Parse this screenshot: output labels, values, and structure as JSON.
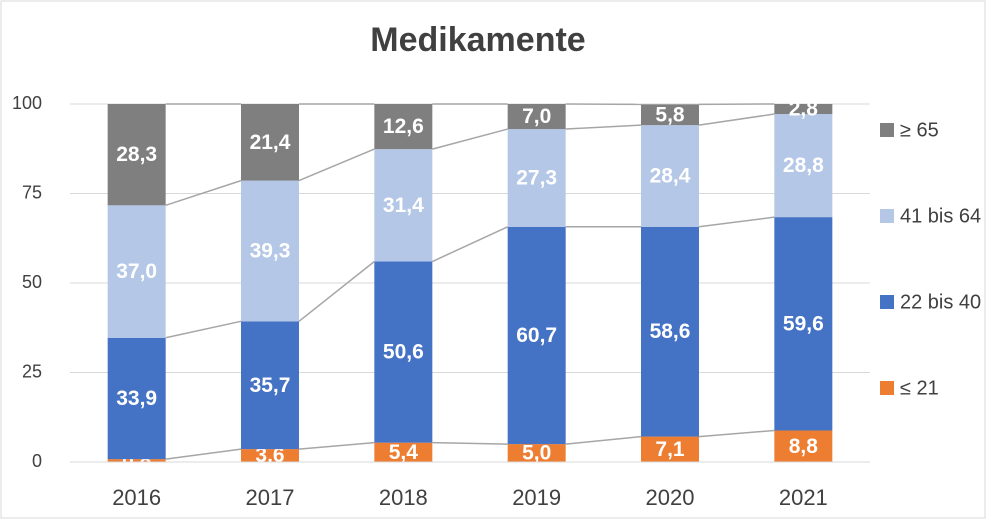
{
  "chart_data": {
    "type": "stacked_bar",
    "title": "Medikamente",
    "categories": [
      "2016",
      "2017",
      "2018",
      "2019",
      "2020",
      "2021"
    ],
    "series": [
      {
        "name": "≤ 21",
        "color": "#ed7d31",
        "values": [
          0.8,
          3.6,
          5.4,
          5.0,
          7.1,
          8.8
        ],
        "value_labels": [
          "0,8",
          "3,6",
          "5,4",
          "5,0",
          "7,1",
          "8,8"
        ]
      },
      {
        "name": "22 bis 40",
        "color": "#4472c4",
        "values": [
          33.9,
          35.7,
          50.6,
          60.7,
          58.6,
          59.6
        ],
        "value_labels": [
          "33,9",
          "35,7",
          "50,6",
          "60,7",
          "58,6",
          "59,6"
        ]
      },
      {
        "name": "41 bis 64",
        "color": "#b4c7e7",
        "values": [
          37.0,
          39.3,
          31.4,
          27.3,
          28.4,
          28.8
        ],
        "value_labels": [
          "37,0",
          "39,3",
          "31,4",
          "27,3",
          "28,4",
          "28,8"
        ]
      },
      {
        "name": "≥ 65",
        "color": "#7f7f7f",
        "values": [
          28.3,
          21.4,
          12.6,
          7.0,
          5.8,
          2.8
        ],
        "value_labels": [
          "28,3",
          "21,4",
          "12,6",
          "7,0",
          "5,8",
          "2,8"
        ]
      }
    ],
    "ylim": [
      0,
      100
    ],
    "yticks": [
      0,
      25,
      50,
      75,
      100
    ],
    "grid": true,
    "legend": "right"
  }
}
